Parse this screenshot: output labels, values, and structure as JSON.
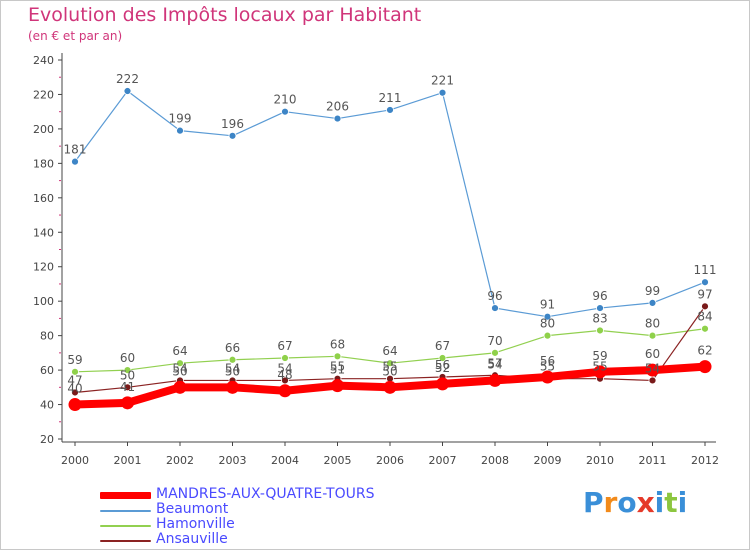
{
  "chart_data": {
    "type": "line",
    "title": "Evolution des Impôts locaux par Habitant",
    "subtitle": "(en € et par an)",
    "xlabel": "",
    "ylabel": "",
    "x": [
      "2000",
      "2001",
      "2002",
      "2003",
      "2004",
      "2005",
      "2006",
      "2007",
      "2008",
      "2009",
      "2010",
      "2011",
      "2012"
    ],
    "ylim": [
      20,
      240
    ],
    "yticks": [
      20,
      40,
      60,
      80,
      100,
      120,
      140,
      160,
      180,
      200,
      220,
      240
    ],
    "grid": false,
    "legend_position": "bottom-left",
    "series": [
      {
        "name": "MANDRES-AUX-QUATRE-TOURS",
        "color": "#ff0000",
        "values": [
          40,
          41,
          50,
          50,
          48,
          51,
          50,
          52,
          54,
          56,
          59,
          60,
          62
        ]
      },
      {
        "name": "Beaumont",
        "color": "#5b9bd5",
        "values": [
          181,
          222,
          199,
          196,
          210,
          206,
          211,
          221,
          96,
          91,
          96,
          99,
          111
        ]
      },
      {
        "name": "Hamonville",
        "color": "#92d050",
        "values": [
          59,
          60,
          64,
          66,
          67,
          68,
          64,
          67,
          70,
          80,
          83,
          80,
          84
        ]
      },
      {
        "name": "Ansauville",
        "color": "#8b2323",
        "values": [
          47,
          50,
          54,
          54,
          54,
          55,
          55,
          56,
          57,
          55,
          55,
          54,
          97
        ]
      }
    ]
  },
  "logo": {
    "text": "Proxiti",
    "colors": [
      "#3a8fd8",
      "#f28a1a",
      "#3a8fd8",
      "#e53a2a",
      "#3a8fd8",
      "#8cc63f",
      "#3a8fd8"
    ]
  }
}
